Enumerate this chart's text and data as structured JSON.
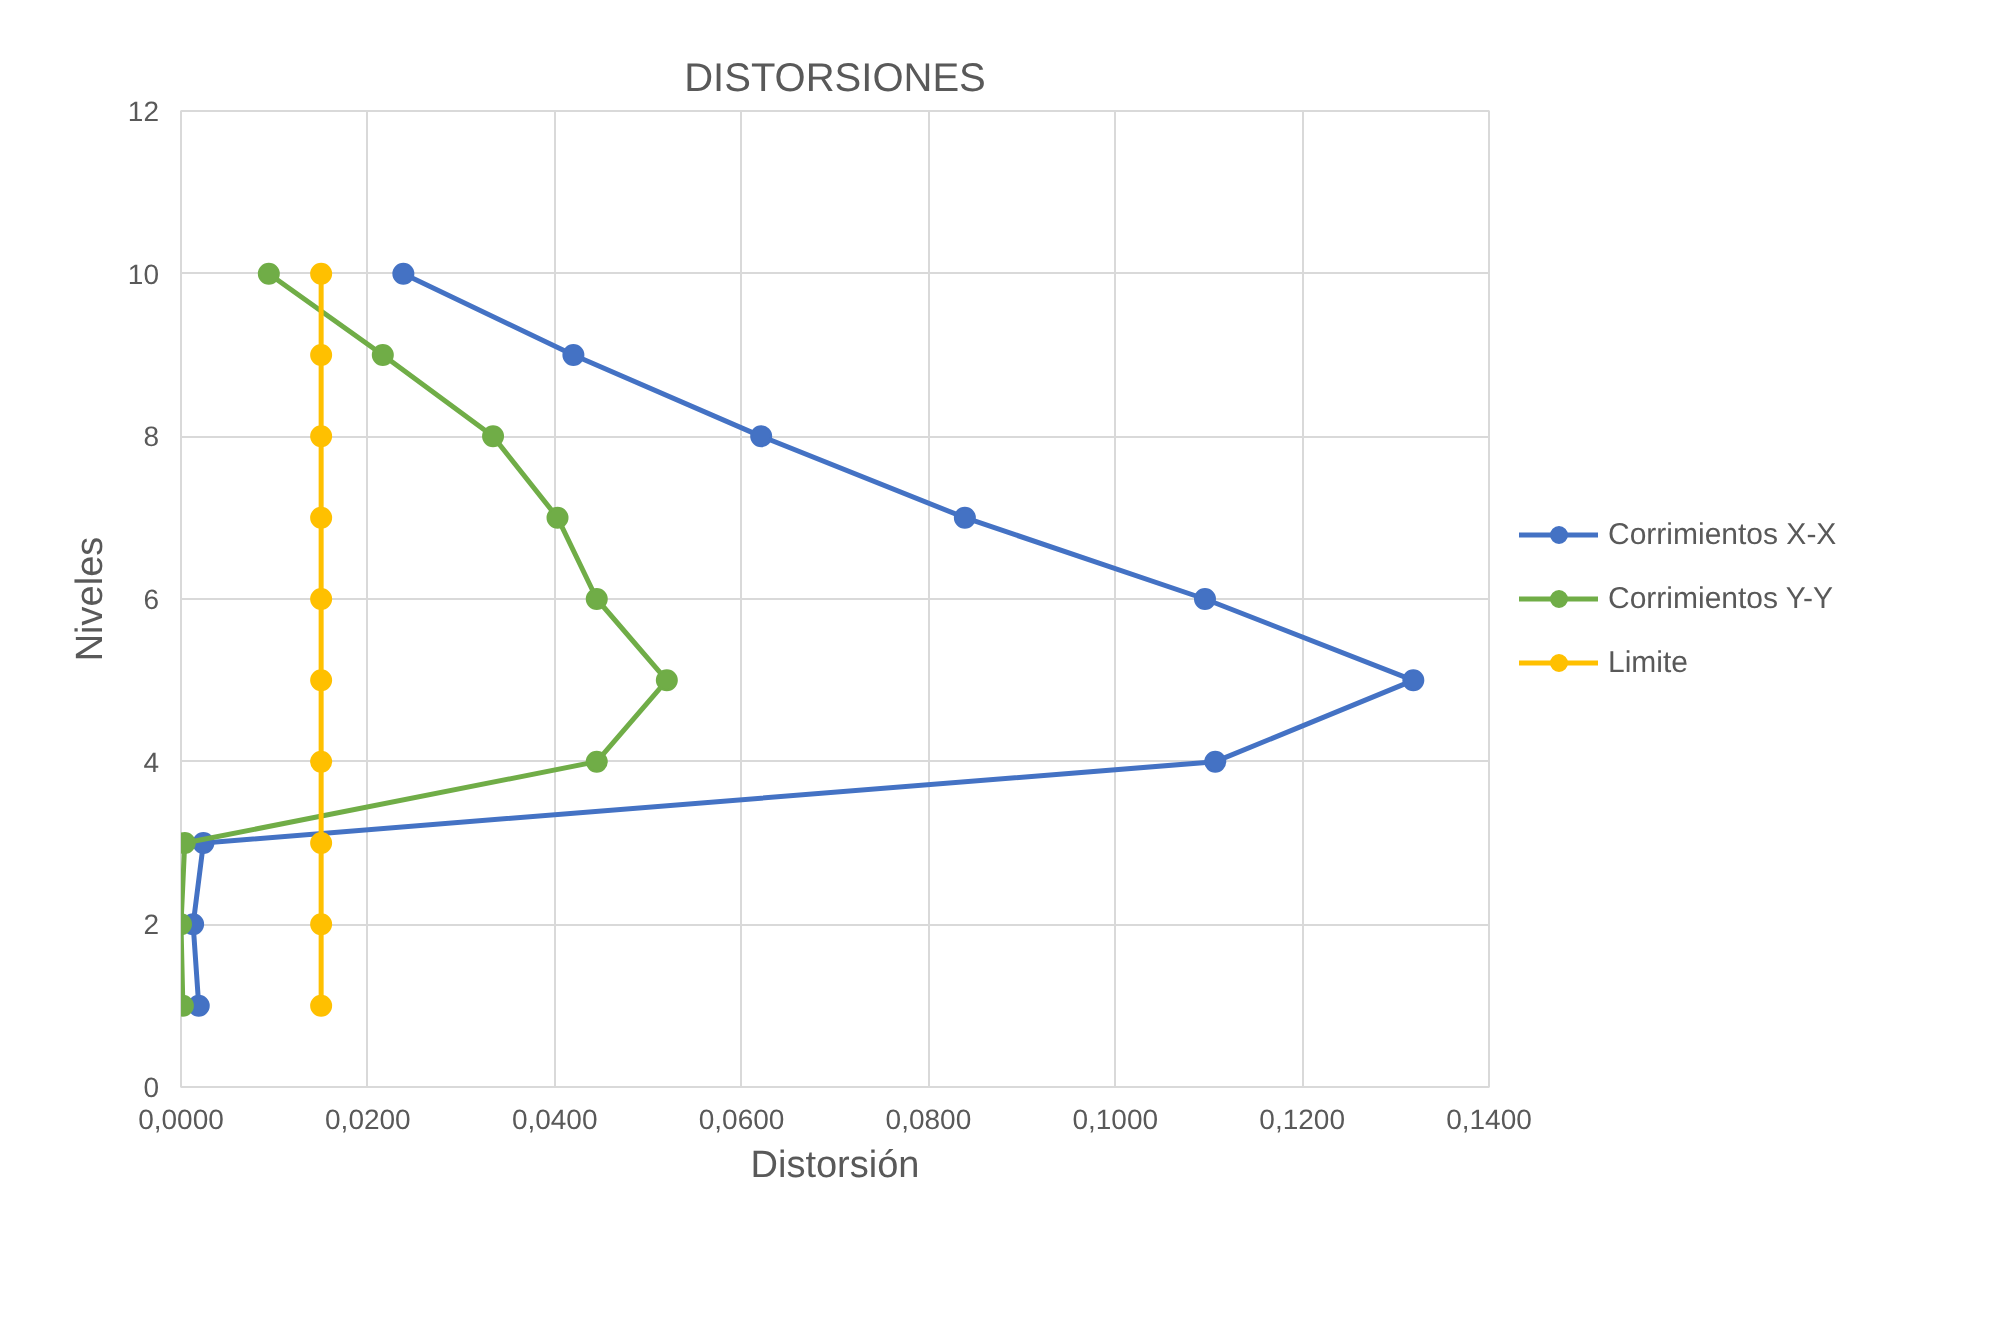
{
  "chart_data": {
    "type": "line",
    "title": "DISTORSIONES",
    "xlabel": "Distorsión",
    "ylabel": "Niveles",
    "series": [
      {
        "name": "Corrimientos X-X",
        "color": "#4472c4",
        "x": [
          0.0019,
          0.0013,
          0.0024,
          0.1107,
          0.1319,
          0.1096,
          0.0839,
          0.0621,
          0.042,
          0.0238
        ],
        "values": [
          1,
          2,
          3,
          4,
          5,
          6,
          7,
          8,
          9,
          10
        ]
      },
      {
        "name": "Corrimientos Y-Y",
        "color": "#70ad47",
        "x": [
          0.0002,
          0.0,
          0.0004,
          0.0445,
          0.052,
          0.0445,
          0.0403,
          0.0334,
          0.0216,
          0.0094
        ],
        "values": [
          1,
          2,
          3,
          4,
          5,
          6,
          7,
          8,
          9,
          10
        ]
      },
      {
        "name": "Limite",
        "color": "#ffc000",
        "x": [
          0.015,
          0.015,
          0.015,
          0.015,
          0.015,
          0.015,
          0.015,
          0.015,
          0.015,
          0.015
        ],
        "values": [
          1,
          2,
          3,
          4,
          5,
          6,
          7,
          8,
          9,
          10
        ]
      }
    ],
    "xlim": [
      0,
      0.14
    ],
    "xticks": [
      {
        "value": 0,
        "label": "0,0000"
      },
      {
        "value": 0.02,
        "label": "0,0200"
      },
      {
        "value": 0.04,
        "label": "0,0400"
      },
      {
        "value": 0.06,
        "label": "0,0600"
      },
      {
        "value": 0.08,
        "label": "0,0800"
      },
      {
        "value": 0.1,
        "label": "0,1000"
      },
      {
        "value": 0.12,
        "label": "0,1200"
      },
      {
        "value": 0.14,
        "label": "0,1400"
      }
    ],
    "ylim": [
      0,
      12
    ],
    "yticks": [
      0,
      2,
      4,
      6,
      8,
      10,
      12
    ],
    "grid": true,
    "legend": "right",
    "marker": "circle",
    "line_style": "solid"
  }
}
